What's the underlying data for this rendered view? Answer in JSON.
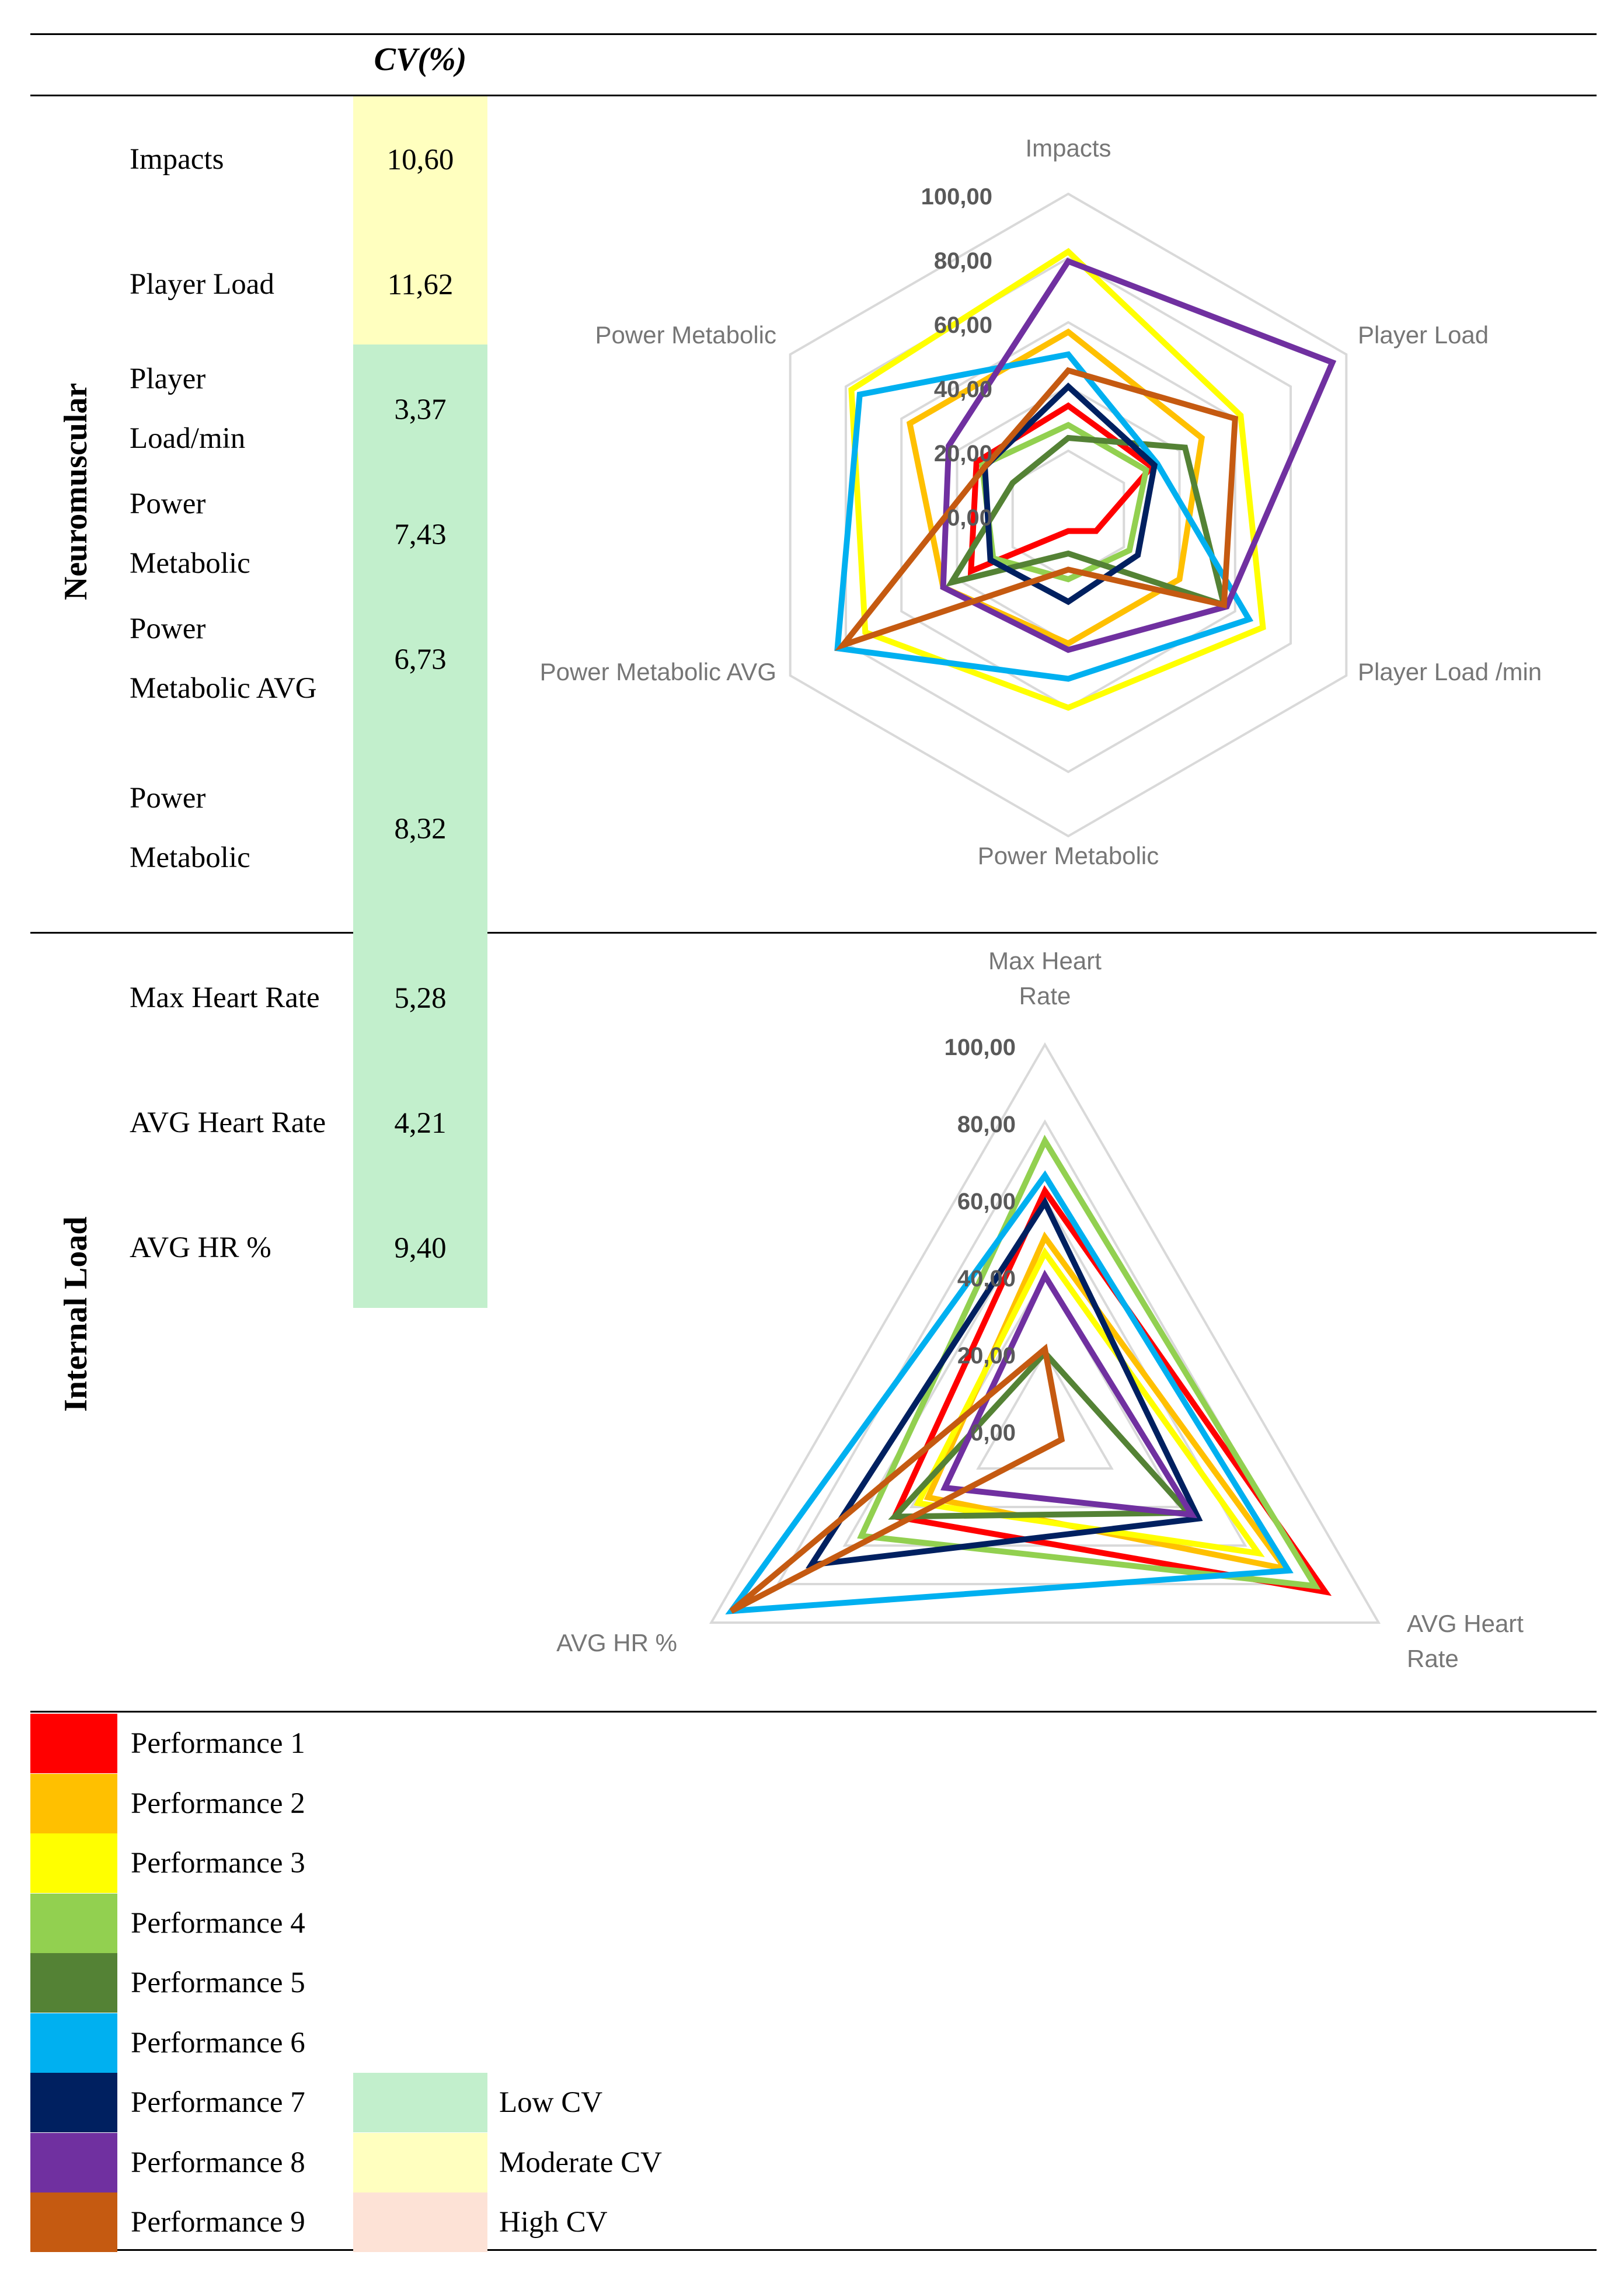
{
  "header": {
    "cv_heading": "CV(%)"
  },
  "sections": [
    {
      "title": "Neuromuscular",
      "rows": [
        {
          "label_lines": [
            "Impacts"
          ],
          "cv": "10,60",
          "level": "moderate"
        },
        {
          "label_lines": [
            "Player Load"
          ],
          "cv": "11,62",
          "level": "moderate"
        },
        {
          "label_lines": [
            "Player",
            "Load/min"
          ],
          "cv": "3,37",
          "level": "low"
        },
        {
          "label_lines": [
            "Power",
            "Metabolic"
          ],
          "cv": "7,43",
          "level": "low"
        },
        {
          "label_lines": [
            "Power",
            "Metabolic AVG"
          ],
          "cv": "6,73",
          "level": "low"
        },
        {
          "label_lines": [
            "Power",
            "Metabolic"
          ],
          "cv": "8,32",
          "level": "low"
        }
      ]
    },
    {
      "title": "Internal Load",
      "rows": [
        {
          "label_lines": [
            "Max Heart Rate"
          ],
          "cv": "5,28",
          "level": "low"
        },
        {
          "label_lines": [
            "AVG Heart Rate"
          ],
          "cv": "4,21",
          "level": "low"
        },
        {
          "label_lines": [
            "AVG HR %"
          ],
          "cv": "9,40",
          "level": "low"
        }
      ]
    }
  ],
  "cv_colors": {
    "low": "#c2efcc",
    "moderate": "#ffffbf",
    "high": "#fde2d6"
  },
  "chart_data": [
    {
      "type": "radar",
      "axes": [
        "Impacts",
        "Player Load",
        "Player Load /min",
        "Power Metabolic",
        "Power Metabolic AVG",
        "Power Metabolic"
      ],
      "tick_labels": [
        "0,00",
        "20,00",
        "40,00",
        "60,00",
        "80,00",
        "100,00"
      ],
      "range": [
        0,
        100
      ],
      "series": [
        {
          "name": "Performance 1",
          "color": "#ff0000",
          "values": [
            34,
            30,
            10,
            5,
            35,
            33
          ]
        },
        {
          "name": "Performance 2",
          "color": "#ffc000",
          "values": [
            57,
            48,
            40,
            40,
            45,
            57
          ]
        },
        {
          "name": "Performance 3",
          "color": "#ffff00",
          "values": [
            82,
            62,
            70,
            60,
            73,
            78
          ]
        },
        {
          "name": "Performance 4",
          "color": "#92d050",
          "values": [
            28,
            28,
            22,
            20,
            27,
            31
          ]
        },
        {
          "name": "Performance 5",
          "color": "#548235",
          "values": [
            24,
            42,
            56,
            12,
            42,
            20
          ]
        },
        {
          "name": "Performance 6",
          "color": "#00b0f0",
          "values": [
            50,
            32,
            65,
            51,
            83,
            75
          ]
        },
        {
          "name": "Performance 7",
          "color": "#002060",
          "values": [
            40,
            31,
            25,
            27,
            28,
            30
          ]
        },
        {
          "name": "Performance 8",
          "color": "#7030a0",
          "values": [
            79,
            95,
            57,
            42,
            45,
            43
          ]
        },
        {
          "name": "Performance 9",
          "color": "#c55a11",
          "values": [
            45,
            60,
            56,
            17,
            81,
            30
          ]
        }
      ]
    },
    {
      "type": "radar",
      "axes": [
        "Max Heart Rate",
        "AVG Heart Rate",
        "AVG HR  %"
      ],
      "tick_labels": [
        "0,00",
        "20,00",
        "40,00",
        "60,00",
        "80,00",
        "100,00"
      ],
      "range": [
        0,
        100
      ],
      "series": [
        {
          "name": "Performance 1",
          "color": "#ff0000",
          "values": [
            62,
            84,
            45
          ]
        },
        {
          "name": "Performance 2",
          "color": "#ffc000",
          "values": [
            50,
            72,
            35
          ]
        },
        {
          "name": "Performance 3",
          "color": "#ffff00",
          "values": [
            46,
            64,
            38
          ]
        },
        {
          "name": "Performance 4",
          "color": "#92d050",
          "values": [
            75,
            81,
            55
          ]
        },
        {
          "name": "Performance 5",
          "color": "#548235",
          "values": [
            20,
            43,
            45
          ]
        },
        {
          "name": "Performance 6",
          "color": "#00b0f0",
          "values": [
            66,
            73,
            94
          ]
        },
        {
          "name": "Performance 7",
          "color": "#002060",
          "values": [
            59,
            46,
            70
          ]
        },
        {
          "name": "Performance 8",
          "color": "#7030a0",
          "values": [
            40,
            44,
            30
          ]
        },
        {
          "name": "Performance 9",
          "color": "#c55a11",
          "values": [
            21,
            5,
            94
          ]
        }
      ]
    }
  ],
  "legend": {
    "performances": [
      {
        "label": "Performance 1",
        "color": "#ff0000"
      },
      {
        "label": "Performance 2",
        "color": "#ffc000"
      },
      {
        "label": "Performance 3",
        "color": "#ffff00"
      },
      {
        "label": "Performance 4",
        "color": "#92d050"
      },
      {
        "label": "Performance 5",
        "color": "#548235"
      },
      {
        "label": "Performance 6",
        "color": "#00b0f0"
      },
      {
        "label": "Performance 7",
        "color": "#002060"
      },
      {
        "label": "Performance 8",
        "color": "#7030a0"
      },
      {
        "label": "Performance 9",
        "color": "#c55a11"
      }
    ],
    "cv_levels": [
      {
        "label": "Low CV",
        "color": "#c2efcc"
      },
      {
        "label": "Moderate CV",
        "color": "#ffffbf"
      },
      {
        "label": "High CV",
        "color": "#fde2d6"
      }
    ]
  }
}
